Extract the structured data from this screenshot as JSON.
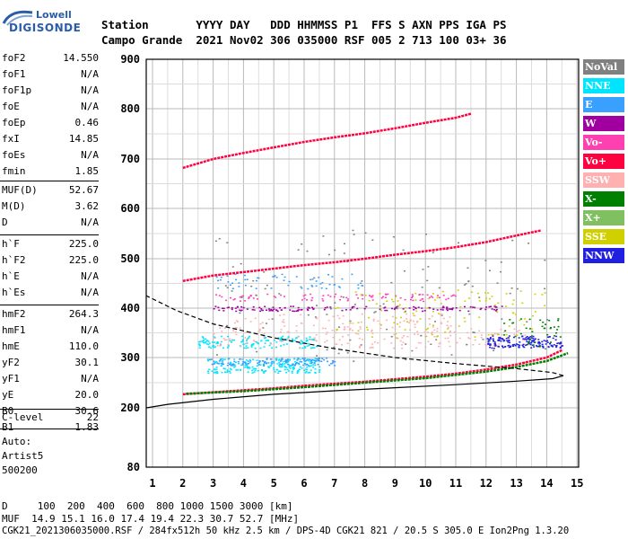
{
  "logo": {
    "top": "Lowell",
    "main": "DIGISONDE"
  },
  "header": {
    "row1": "Station       YYYY DAY   DDD HHMMSS P1  FFS S AXN PPS IGA PS",
    "row2": "Campo Grande  2021 Nov02 306 035000 RSF 005 2 713 100 03+ 36"
  },
  "params": [
    {
      "label": "foF2",
      "value": "14.550"
    },
    {
      "label": "foF1",
      "value": "N/A"
    },
    {
      "label": "foF1p",
      "value": "N/A"
    },
    {
      "label": "foE",
      "value": "N/A"
    },
    {
      "label": "foEp",
      "value": "0.46"
    },
    {
      "label": "fxI",
      "value": "14.85"
    },
    {
      "label": "foEs",
      "value": "N/A"
    },
    {
      "label": "fmin",
      "value": "1.85"
    },
    {
      "label": "MUF(D)",
      "value": "52.67"
    },
    {
      "label": "M(D)",
      "value": "3.62"
    },
    {
      "label": "D",
      "value": "N/A"
    },
    {
      "label": "h`F",
      "value": "225.0"
    },
    {
      "label": "h`F2",
      "value": "225.0"
    },
    {
      "label": "h`E",
      "value": "N/A"
    },
    {
      "label": "h`Es",
      "value": "N/A"
    },
    {
      "label": "hmF2",
      "value": "264.3"
    },
    {
      "label": "hmF1",
      "value": "N/A"
    },
    {
      "label": "hmE",
      "value": "110.0"
    },
    {
      "label": "yF2",
      "value": "30.1"
    },
    {
      "label": "yF1",
      "value": "N/A"
    },
    {
      "label": "yE",
      "value": "20.0"
    },
    {
      "label": "B0",
      "value": "30.6"
    },
    {
      "label": "B1",
      "value": "1.83"
    },
    {
      "label": "C-level",
      "value": "22"
    }
  ],
  "auto": [
    "Auto:",
    "Artist5",
    "500200"
  ],
  "legend": [
    {
      "label": "NoVal",
      "color": "#808080"
    },
    {
      "label": "NNE",
      "color": "#00e5ff"
    },
    {
      "label": "E",
      "color": "#3aa0ff"
    },
    {
      "label": "W",
      "color": "#a000a0"
    },
    {
      "label": "Vo-",
      "color": "#ff40b0"
    },
    {
      "label": "Vo+",
      "color": "#ff0040"
    },
    {
      "label": "SSW",
      "color": "#ffb0b0"
    },
    {
      "label": "X-",
      "color": "#008000"
    },
    {
      "label": "X+",
      "color": "#80c060"
    },
    {
      "label": "SSE",
      "color": "#d0d000"
    },
    {
      "label": "NNW",
      "color": "#2020e0"
    }
  ],
  "bottom": {
    "d_line": "D     100  200  400  600  800 1000 1500 3000 [km]",
    "muf_line": "MUF  14.9 15.1 16.0 17.4 19.4 22.3 30.7 52.7 [MHz]",
    "file_line": "CGK21_2021306035000.RSF / 284fx512h 50 kHz 2.5 km / DPS-4D CGK21 821 / 20.5 S 305.0 E Ion2Png 1.3.20"
  },
  "chart_data": {
    "type": "scatter",
    "x_ticks": [
      1,
      2,
      3,
      4,
      5,
      6,
      7,
      8,
      9,
      10,
      11,
      12,
      13,
      14,
      15
    ],
    "y_ticks": [
      80,
      200,
      300,
      400,
      500,
      600,
      700,
      800,
      900
    ],
    "xlim": [
      0.8,
      15
    ],
    "ylim_scale": "nonlinear",
    "grid": true,
    "legend_position": "right",
    "traces": [
      {
        "name": "F2 O-trace (Vo+)",
        "color": "#ff0040",
        "x": [
          2.0,
          3,
          4,
          5,
          6,
          7,
          8,
          9,
          10,
          11,
          12,
          13,
          14,
          14.5
        ],
        "y": [
          227,
          231,
          235,
          239,
          244,
          248,
          252,
          257,
          262,
          268,
          276,
          286,
          300,
          315
        ]
      },
      {
        "name": "F2 X-trace",
        "color": "#008000",
        "x": [
          2.1,
          4,
          6,
          8,
          10,
          12,
          13,
          14,
          14.7
        ],
        "y": [
          228,
          233,
          241,
          250,
          259,
          272,
          281,
          293,
          309
        ]
      },
      {
        "name": "2F multiple",
        "color": "#ff0040",
        "x": [
          2.0,
          3,
          4,
          5,
          6,
          7,
          8,
          9,
          10,
          11,
          12,
          13,
          13.8
        ],
        "y": [
          455,
          466,
          473,
          480,
          487,
          493,
          500,
          508,
          515,
          523,
          533,
          546,
          556
        ]
      },
      {
        "name": "3F multiple",
        "color": "#ff0040",
        "x": [
          2.0,
          3,
          4,
          5,
          6,
          7,
          8,
          9,
          10,
          11,
          11.5
        ],
        "y": [
          682,
          700,
          712,
          723,
          734,
          743,
          751,
          761,
          772,
          782,
          790
        ]
      }
    ],
    "profile": [
      {
        "x": 0.8,
        "y": 200
      },
      {
        "x": 1.5,
        "y": 207
      },
      {
        "x": 3,
        "y": 217
      },
      {
        "x": 5,
        "y": 227
      },
      {
        "x": 7,
        "y": 234
      },
      {
        "x": 9,
        "y": 240
      },
      {
        "x": 11,
        "y": 246
      },
      {
        "x": 13,
        "y": 253
      },
      {
        "x": 14.2,
        "y": 258
      },
      {
        "x": 14.55,
        "y": 264
      }
    ],
    "profile_topside": [
      {
        "x": 14.55,
        "y": 264
      },
      {
        "x": 14.2,
        "y": 270
      },
      {
        "x": 13,
        "y": 278
      },
      {
        "x": 11,
        "y": 288
      },
      {
        "x": 9,
        "y": 300
      },
      {
        "x": 7,
        "y": 318
      },
      {
        "x": 5,
        "y": 340
      },
      {
        "x": 3,
        "y": 368
      },
      {
        "x": 1.8,
        "y": 395
      },
      {
        "x": 0.8,
        "y": 425
      }
    ]
  }
}
